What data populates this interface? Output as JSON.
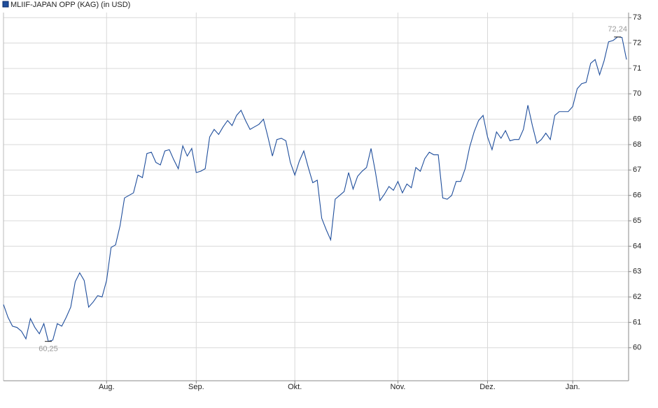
{
  "chart_data": {
    "type": "line",
    "legend": "top-left",
    "grid": true,
    "categories": [
      null,
      null,
      null,
      null,
      null,
      null,
      null,
      null,
      null,
      null,
      null,
      null,
      null,
      null,
      null,
      null,
      null,
      null,
      null,
      null,
      null,
      null,
      null,
      "Aug.",
      null,
      null,
      null,
      null,
      null,
      null,
      null,
      null,
      null,
      null,
      null,
      null,
      null,
      null,
      null,
      null,
      null,
      null,
      null,
      "Sep.",
      null,
      null,
      null,
      null,
      null,
      null,
      null,
      null,
      null,
      null,
      null,
      null,
      null,
      null,
      null,
      null,
      null,
      null,
      null,
      null,
      null,
      "Okt.",
      null,
      null,
      null,
      null,
      null,
      null,
      null,
      null,
      null,
      null,
      null,
      null,
      null,
      null,
      null,
      null,
      null,
      null,
      null,
      null,
      null,
      null,
      "Nov.",
      null,
      null,
      null,
      null,
      null,
      null,
      null,
      null,
      null,
      null,
      null,
      null,
      null,
      null,
      null,
      null,
      null,
      null,
      null,
      "Dez.",
      null,
      null,
      null,
      null,
      null,
      null,
      null,
      null,
      null,
      null,
      null,
      null,
      null,
      null,
      null,
      null,
      null,
      null,
      "Jan.",
      null,
      null,
      null,
      null,
      null,
      null,
      null,
      null,
      null,
      null,
      null,
      null
    ],
    "series": [
      {
        "name": "MLIIF-JAPAN OPP (KAG) (in USD)",
        "color": "#1f4e9c",
        "values": [
          61.7,
          61.2,
          60.85,
          60.8,
          60.65,
          60.35,
          61.15,
          60.8,
          60.55,
          60.95,
          60.25,
          60.3,
          60.95,
          60.85,
          61.2,
          61.6,
          62.6,
          62.95,
          62.65,
          61.6,
          61.8,
          62.05,
          62.0,
          62.65,
          63.95,
          64.05,
          64.8,
          65.9,
          66.0,
          66.1,
          66.8,
          66.7,
          67.65,
          67.7,
          67.3,
          67.2,
          67.75,
          67.8,
          67.4,
          67.05,
          67.95,
          67.55,
          67.85,
          66.9,
          66.95,
          67.05,
          68.3,
          68.6,
          68.4,
          68.7,
          68.95,
          68.75,
          69.15,
          69.35,
          68.95,
          68.6,
          68.7,
          68.8,
          69.0,
          68.3,
          67.55,
          68.2,
          68.25,
          68.15,
          67.3,
          66.8,
          67.35,
          67.75,
          67.1,
          66.5,
          66.6,
          65.1,
          64.65,
          64.25,
          65.85,
          66.0,
          66.15,
          66.9,
          66.25,
          66.75,
          66.95,
          67.1,
          67.85,
          66.9,
          65.8,
          66.05,
          66.35,
          66.2,
          66.55,
          66.1,
          66.45,
          66.3,
          67.1,
          66.95,
          67.45,
          67.7,
          67.6,
          67.6,
          65.9,
          65.85,
          66.0,
          66.55,
          66.55,
          67.05,
          67.9,
          68.5,
          68.95,
          69.15,
          68.3,
          67.8,
          68.5,
          68.25,
          68.55,
          68.15,
          68.2,
          68.2,
          68.6,
          69.55,
          68.75,
          68.05,
          68.2,
          68.45,
          68.2,
          69.15,
          69.3,
          69.3,
          69.3,
          69.5,
          70.2,
          70.4,
          70.45,
          71.2,
          71.35,
          70.75,
          71.3,
          72.05,
          72.1,
          72.24,
          72.22,
          71.35
        ]
      }
    ],
    "annotations": [
      {
        "label": "72,24",
        "value": 72.24,
        "position": "above"
      },
      {
        "label": "60,25",
        "value": 60.25,
        "position": "below"
      }
    ],
    "ylim": [
      58.7,
      73.2
    ],
    "yticks": [
      60,
      61,
      62,
      63,
      64,
      65,
      66,
      67,
      68,
      69,
      70,
      71,
      72,
      73
    ]
  }
}
